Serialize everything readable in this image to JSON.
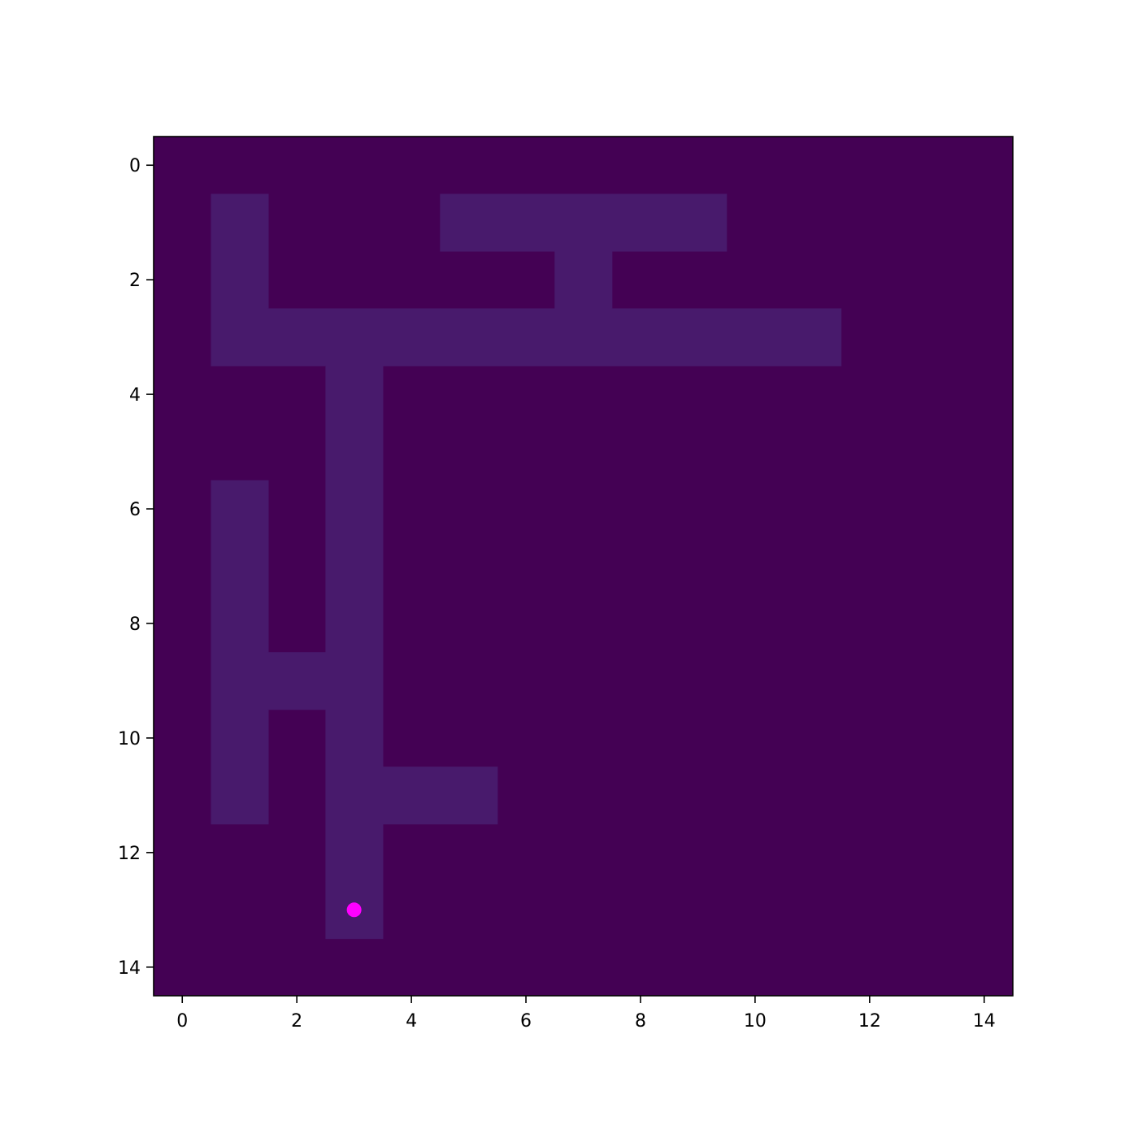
{
  "chart_data": {
    "type": "heatmap",
    "title": "",
    "xlabel": "",
    "ylabel": "",
    "grid_size": 15,
    "xlim": [
      -0.5,
      14.5
    ],
    "ylim": [
      14.5,
      -0.5
    ],
    "y_axis_inverted": true,
    "grid": false,
    "x_ticks": [
      0,
      2,
      4,
      6,
      8,
      10,
      12,
      14
    ],
    "y_ticks": [
      0,
      2,
      4,
      6,
      8,
      10,
      12,
      14
    ],
    "x_tick_labels": [
      "0",
      "2",
      "4",
      "6",
      "8",
      "10",
      "12",
      "14"
    ],
    "y_tick_labels": [
      "0",
      "2",
      "4",
      "6",
      "8",
      "10",
      "12",
      "14"
    ],
    "colors": {
      "wall": "#440154",
      "path": "#481a6c",
      "agent": "#ff00ff",
      "frame": "#000000"
    },
    "path_cells": [
      [
        1,
        1
      ],
      [
        5,
        1
      ],
      [
        6,
        1
      ],
      [
        7,
        1
      ],
      [
        8,
        1
      ],
      [
        9,
        1
      ],
      [
        1,
        2
      ],
      [
        7,
        2
      ],
      [
        1,
        3
      ],
      [
        2,
        3
      ],
      [
        3,
        3
      ],
      [
        4,
        3
      ],
      [
        5,
        3
      ],
      [
        6,
        3
      ],
      [
        7,
        3
      ],
      [
        8,
        3
      ],
      [
        9,
        3
      ],
      [
        10,
        3
      ],
      [
        11,
        3
      ],
      [
        3,
        4
      ],
      [
        3,
        5
      ],
      [
        1,
        6
      ],
      [
        3,
        6
      ],
      [
        1,
        7
      ],
      [
        3,
        7
      ],
      [
        1,
        8
      ],
      [
        3,
        8
      ],
      [
        1,
        9
      ],
      [
        2,
        9
      ],
      [
        3,
        9
      ],
      [
        1,
        10
      ],
      [
        3,
        10
      ],
      [
        1,
        11
      ],
      [
        3,
        11
      ],
      [
        4,
        11
      ],
      [
        5,
        11
      ],
      [
        3,
        12
      ],
      [
        3,
        13
      ]
    ],
    "agent": {
      "x": 3,
      "y": 13
    }
  }
}
